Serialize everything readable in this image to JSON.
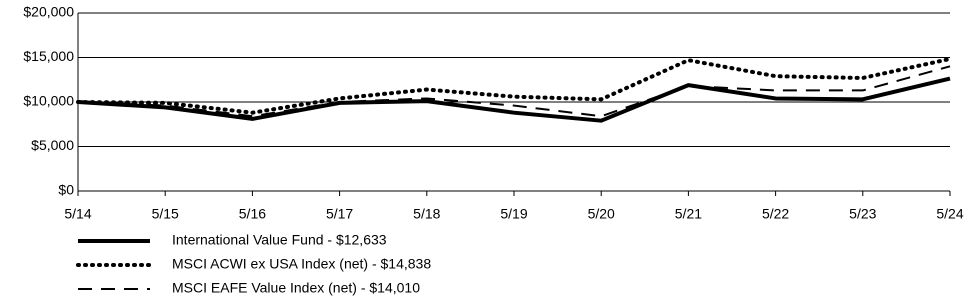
{
  "chart_data": {
    "type": "line",
    "categories": [
      "5/14",
      "5/15",
      "5/16",
      "5/17",
      "5/18",
      "5/19",
      "5/20",
      "5/21",
      "5/22",
      "5/23",
      "5/24"
    ],
    "series": [
      {
        "name": "International Value Fund - $12,633",
        "color": "#000000",
        "style": "solid",
        "values": [
          10000,
          9400,
          8100,
          9900,
          10100,
          8800,
          7900,
          11900,
          10400,
          10300,
          12633
        ]
      },
      {
        "name": "MSCI ACWI ex USA Index (net) - $14,838",
        "color": "#000000",
        "style": "dotted",
        "values": [
          10000,
          9900,
          8800,
          10400,
          11400,
          10600,
          10300,
          14700,
          12900,
          12700,
          14838
        ]
      },
      {
        "name": "MSCI EAFE Value Index (net) - $14,010",
        "color": "#000000",
        "style": "dashed",
        "values": [
          10000,
          9600,
          8400,
          10000,
          10400,
          9600,
          8400,
          11800,
          11300,
          11300,
          14010
        ]
      }
    ],
    "ylim": [
      0,
      20000
    ],
    "yticks": [
      {
        "value": 0,
        "label": "$0"
      },
      {
        "value": 5000,
        "label": "$5,000"
      },
      {
        "value": 10000,
        "label": "$10,000"
      },
      {
        "value": 15000,
        "label": "$15,000"
      },
      {
        "value": 20000,
        "label": "$20,000"
      }
    ],
    "grid": true
  }
}
